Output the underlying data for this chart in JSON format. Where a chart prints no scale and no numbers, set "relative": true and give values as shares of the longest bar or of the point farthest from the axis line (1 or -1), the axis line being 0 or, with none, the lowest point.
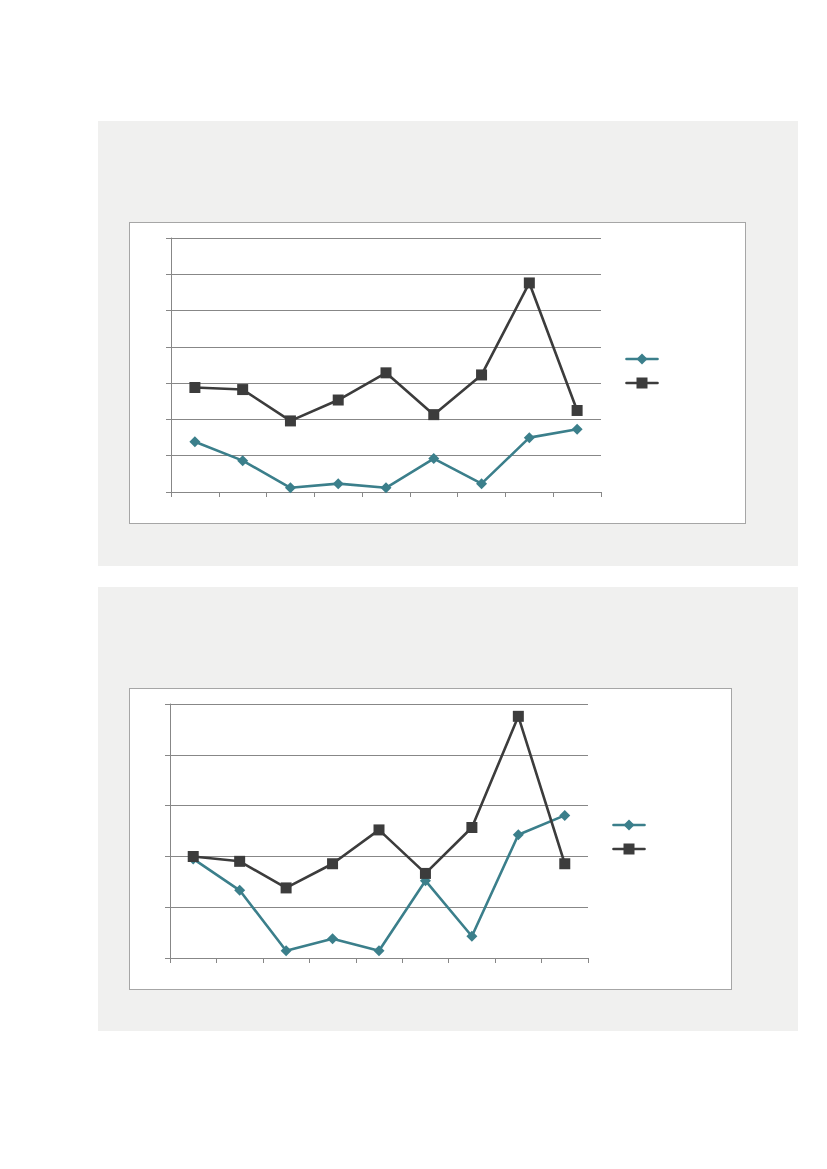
{
  "chart_data": [
    {
      "type": "line",
      "relative": true,
      "categories": [
        null,
        null,
        null,
        null,
        null,
        null,
        null,
        null,
        null
      ],
      "series": [
        {
          "color": "#3b7f8b",
          "marker": "diamond",
          "values": [
            0.24,
            0.15,
            0.02,
            0.04,
            0.02,
            0.16,
            0.04,
            0.26,
            0.3
          ]
        },
        {
          "color": "#3c3c3c",
          "marker": "square",
          "values": [
            0.5,
            0.49,
            0.34,
            0.44,
            0.57,
            0.37,
            0.56,
            1,
            0.39
          ]
        }
      ],
      "grid": "y"
    },
    {
      "type": "line",
      "relative": true,
      "categories": [
        null,
        null,
        null,
        null,
        null,
        null,
        null,
        null,
        null
      ],
      "series": [
        {
          "color": "#3b7f8b",
          "marker": "diamond",
          "values": [
            0.41,
            0.28,
            0.03,
            0.08,
            0.03,
            0.32,
            0.09,
            0.51,
            0.59
          ]
        },
        {
          "color": "#3c3c3c",
          "marker": "square",
          "values": [
            0.42,
            0.4,
            0.29,
            0.39,
            0.53,
            0.35,
            0.54,
            1,
            0.39
          ]
        }
      ],
      "grid": "y"
    }
  ]
}
